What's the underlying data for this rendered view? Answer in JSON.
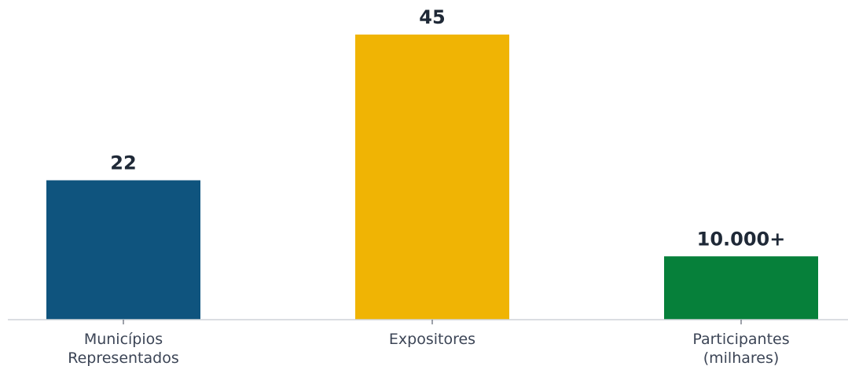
{
  "chart_data": {
    "type": "bar",
    "title": "",
    "xlabel": "",
    "ylabel": "",
    "ylim": [
      0,
      45
    ],
    "grid": false,
    "categories": [
      [
        "Municípios",
        "Representados"
      ],
      [
        "Expositores"
      ],
      [
        "Participantes",
        "(milhares)"
      ]
    ],
    "values": [
      22,
      45,
      10
    ],
    "data_labels": [
      "22",
      "45",
      "10.000+"
    ],
    "colors": [
      "#0f547e",
      "#f0b404",
      "#06803a"
    ]
  }
}
